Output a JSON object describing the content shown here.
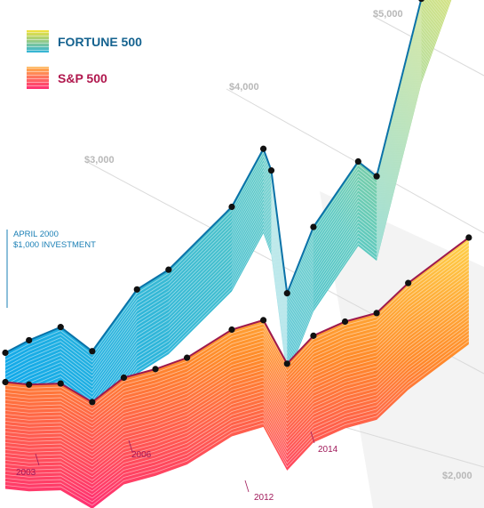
{
  "colors": {
    "fortune_line": "#0a72a8",
    "sp_line": "#9e1a4f",
    "fortune_gradient": [
      "#f4e23a",
      "#5cc9c0",
      "#0aa6ee"
    ],
    "sp_gradient": [
      "#ffd34a",
      "#ff8a2a",
      "#ff2e73"
    ],
    "grid": "#d9d9d9",
    "backdrop": "#f2f2f2"
  },
  "legend": [
    {
      "label": "FORTUNE 500",
      "color": "#14628f"
    },
    {
      "label": "S&P 500",
      "color": "#b0174d"
    }
  ],
  "annotation": {
    "line1": "APRIL 2000",
    "line2": "$1,000 INVESTMENT"
  },
  "chart_data": {
    "type": "area",
    "y_axis_ticks": [
      "$2,000",
      "$3,000",
      "$4,000",
      "$5,000"
    ],
    "year_labels": [
      "2003",
      "2006",
      "2012",
      "2014"
    ],
    "series": [
      {
        "name": "FORTUNE 500",
        "values": [
          {
            "x": "2000-04",
            "y": 1000
          },
          {
            "x": "2001-01",
            "y": 1080
          },
          {
            "x": "2002-01",
            "y": 1150
          },
          {
            "x": "2003-01",
            "y": 820
          },
          {
            "x": "2004-06",
            "y": 1380
          },
          {
            "x": "2005-06",
            "y": 1520
          },
          {
            "x": "2007-06",
            "y": 2050
          },
          {
            "x": "2008-06",
            "y": 2600
          },
          {
            "x": "2008-09",
            "y": 2350
          },
          {
            "x": "2009-03",
            "y": 1000
          },
          {
            "x": "2010-01",
            "y": 1650
          },
          {
            "x": "2011-06",
            "y": 2250
          },
          {
            "x": "2012-01",
            "y": 2050
          },
          {
            "x": "2013-06",
            "y": 3850
          },
          {
            "x": "2014-12",
            "y": 5150
          }
        ]
      },
      {
        "name": "S&P 500",
        "values": [
          {
            "x": "2000-04",
            "y": 1000
          },
          {
            "x": "2001-01",
            "y": 920
          },
          {
            "x": "2002-01",
            "y": 860
          },
          {
            "x": "2003-01",
            "y": 590
          },
          {
            "x": "2004-01",
            "y": 780
          },
          {
            "x": "2005-01",
            "y": 800
          },
          {
            "x": "2006-01",
            "y": 850
          },
          {
            "x": "2007-06",
            "y": 1050
          },
          {
            "x": "2008-06",
            "y": 1080
          },
          {
            "x": "2009-03",
            "y": 560
          },
          {
            "x": "2010-01",
            "y": 800
          },
          {
            "x": "2011-01",
            "y": 880
          },
          {
            "x": "2012-01",
            "y": 900
          },
          {
            "x": "2013-01",
            "y": 1150
          },
          {
            "x": "2014-12",
            "y": 1500
          }
        ]
      }
    ]
  }
}
